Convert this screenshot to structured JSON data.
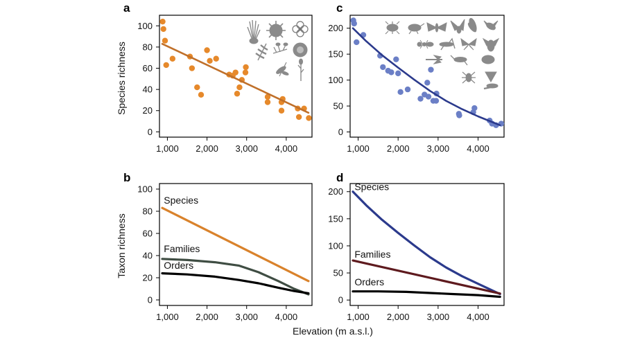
{
  "figure": {
    "xlabel": "Elevation (m a.s.l.)",
    "ylabel_top": "Species richness",
    "ylabel_bottom": "Taxon richness",
    "panel_labels": [
      "a",
      "b",
      "c",
      "d"
    ]
  },
  "chart_data": [
    {
      "panel": "a",
      "type": "scatter",
      "xlim": [
        800,
        4650
      ],
      "ylim": [
        -5,
        110
      ],
      "xticks": [
        1000,
        2000,
        3000,
        4000
      ],
      "xticklabels": [
        "1,000",
        "2,000",
        "3,000",
        "4,000"
      ],
      "yticks": [
        0,
        20,
        40,
        60,
        80,
        100
      ],
      "yticklabels": [
        "0",
        "20",
        "40",
        "60",
        "80",
        "100"
      ],
      "ylabel": "Species richness",
      "color": "#e6892b",
      "fit_color": "#c0702a",
      "icons": "plant-silhouettes",
      "points": [
        [
          880,
          104
        ],
        [
          900,
          97
        ],
        [
          940,
          86
        ],
        [
          970,
          63
        ],
        [
          1130,
          69
        ],
        [
          1570,
          71
        ],
        [
          1620,
          60
        ],
        [
          1750,
          42
        ],
        [
          1850,
          35
        ],
        [
          2000,
          77
        ],
        [
          2070,
          67
        ],
        [
          2230,
          69
        ],
        [
          2560,
          54
        ],
        [
          2650,
          53
        ],
        [
          2720,
          56
        ],
        [
          2760,
          36
        ],
        [
          2820,
          42
        ],
        [
          2880,
          49
        ],
        [
          2970,
          56
        ],
        [
          2980,
          61
        ],
        [
          3530,
          28
        ],
        [
          3530,
          33
        ],
        [
          3880,
          20
        ],
        [
          3880,
          28
        ],
        [
          3910,
          31
        ],
        [
          4290,
          22
        ],
        [
          4320,
          14
        ],
        [
          4450,
          22
        ],
        [
          4570,
          13
        ]
      ],
      "fit": [
        [
          870,
          83
        ],
        [
          4560,
          18
        ]
      ]
    },
    {
      "panel": "c",
      "type": "scatter",
      "xlim": [
        800,
        4650
      ],
      "ylim": [
        -10,
        225
      ],
      "xticks": [
        1000,
        2000,
        3000,
        4000
      ],
      "xticklabels": [
        "1,000",
        "2,000",
        "3,000",
        "4,000"
      ],
      "yticks": [
        0,
        50,
        100,
        150,
        200
      ],
      "yticklabels": [
        "0",
        "50",
        "100",
        "150",
        "200"
      ],
      "color": "#6b7fc6",
      "fit_color": "#2b3a8c",
      "icons": "insect-silhouettes",
      "points": [
        [
          880,
          215
        ],
        [
          900,
          209
        ],
        [
          960,
          173
        ],
        [
          1130,
          187
        ],
        [
          1550,
          147
        ],
        [
          1620,
          125
        ],
        [
          1750,
          118
        ],
        [
          1830,
          115
        ],
        [
          1950,
          140
        ],
        [
          2000,
          113
        ],
        [
          2060,
          77
        ],
        [
          2240,
          82
        ],
        [
          2560,
          64
        ],
        [
          2660,
          72
        ],
        [
          2730,
          95
        ],
        [
          2760,
          68
        ],
        [
          2820,
          120
        ],
        [
          2880,
          60
        ],
        [
          2950,
          60
        ],
        [
          2960,
          74
        ],
        [
          3520,
          35
        ],
        [
          3530,
          32
        ],
        [
          3880,
          38
        ],
        [
          3910,
          46
        ],
        [
          4290,
          22
        ],
        [
          4350,
          16
        ],
        [
          4450,
          13
        ],
        [
          4580,
          16
        ]
      ],
      "fit": [
        [
          870,
          200
        ],
        [
          1200,
          175
        ],
        [
          1600,
          148
        ],
        [
          2000,
          124
        ],
        [
          2400,
          101
        ],
        [
          2800,
          79
        ],
        [
          3200,
          60
        ],
        [
          3600,
          44
        ],
        [
          4000,
          30
        ],
        [
          4550,
          13
        ]
      ]
    },
    {
      "panel": "b",
      "type": "line",
      "xlim": [
        800,
        4650
      ],
      "ylim": [
        -5,
        105
      ],
      "xticks": [
        1000,
        2000,
        3000,
        4000
      ],
      "xticklabels": [
        "1,000",
        "2,000",
        "3,000",
        "4,000"
      ],
      "yticks": [
        0,
        20,
        40,
        60,
        80,
        100
      ],
      "yticklabels": [
        "0",
        "20",
        "40",
        "60",
        "80",
        "100"
      ],
      "ylabel": "Taxon richness",
      "xlabel": "Elevation (m a.s.l.)",
      "series": [
        {
          "name": "Species",
          "color": "#d9822b",
          "x": [
            870,
            4560
          ],
          "values": [
            83,
            17
          ],
          "label_at": [
            910,
            87
          ]
        },
        {
          "name": "Families",
          "color": "#3f4d43",
          "x": [
            870,
            1500,
            2200,
            2800,
            3300,
            3800,
            4200,
            4560
          ],
          "values": [
            37,
            36,
            34,
            31,
            25,
            17,
            10,
            5
          ],
          "label_at": [
            910,
            43
          ]
        },
        {
          "name": "Orders",
          "color": "#000000",
          "x": [
            870,
            1500,
            2200,
            2800,
            3300,
            3800,
            4200,
            4560
          ],
          "values": [
            24,
            23,
            21,
            18,
            15,
            11,
            8,
            6
          ],
          "label_at": [
            910,
            28
          ]
        }
      ]
    },
    {
      "panel": "d",
      "type": "line",
      "xlim": [
        800,
        4650
      ],
      "ylim": [
        -10,
        215
      ],
      "xticks": [
        1000,
        2000,
        3000,
        4000
      ],
      "xticklabels": [
        "1,000",
        "2,000",
        "3,000",
        "4,000"
      ],
      "yticks": [
        0,
        50,
        100,
        150,
        200
      ],
      "yticklabels": [
        "0",
        "50",
        "100",
        "150",
        "200"
      ],
      "series": [
        {
          "name": "Species",
          "color": "#2b3a8c",
          "x": [
            870,
            1200,
            1600,
            2000,
            2400,
            2800,
            3200,
            3600,
            4000,
            4550
          ],
          "values": [
            200,
            175,
            148,
            124,
            101,
            79,
            60,
            44,
            30,
            11
          ],
          "label_at": [
            910,
            203
          ]
        },
        {
          "name": "Families",
          "color": "#5e1a1e",
          "x": [
            870,
            4550
          ],
          "values": [
            73,
            12
          ],
          "label_at": [
            910,
            78
          ]
        },
        {
          "name": "Orders",
          "color": "#000000",
          "x": [
            870,
            1500,
            2200,
            2800,
            3400,
            4000,
            4550
          ],
          "values": [
            16,
            16,
            15,
            13,
            11,
            9,
            6
          ],
          "label_at": [
            910,
            27
          ]
        }
      ]
    }
  ]
}
